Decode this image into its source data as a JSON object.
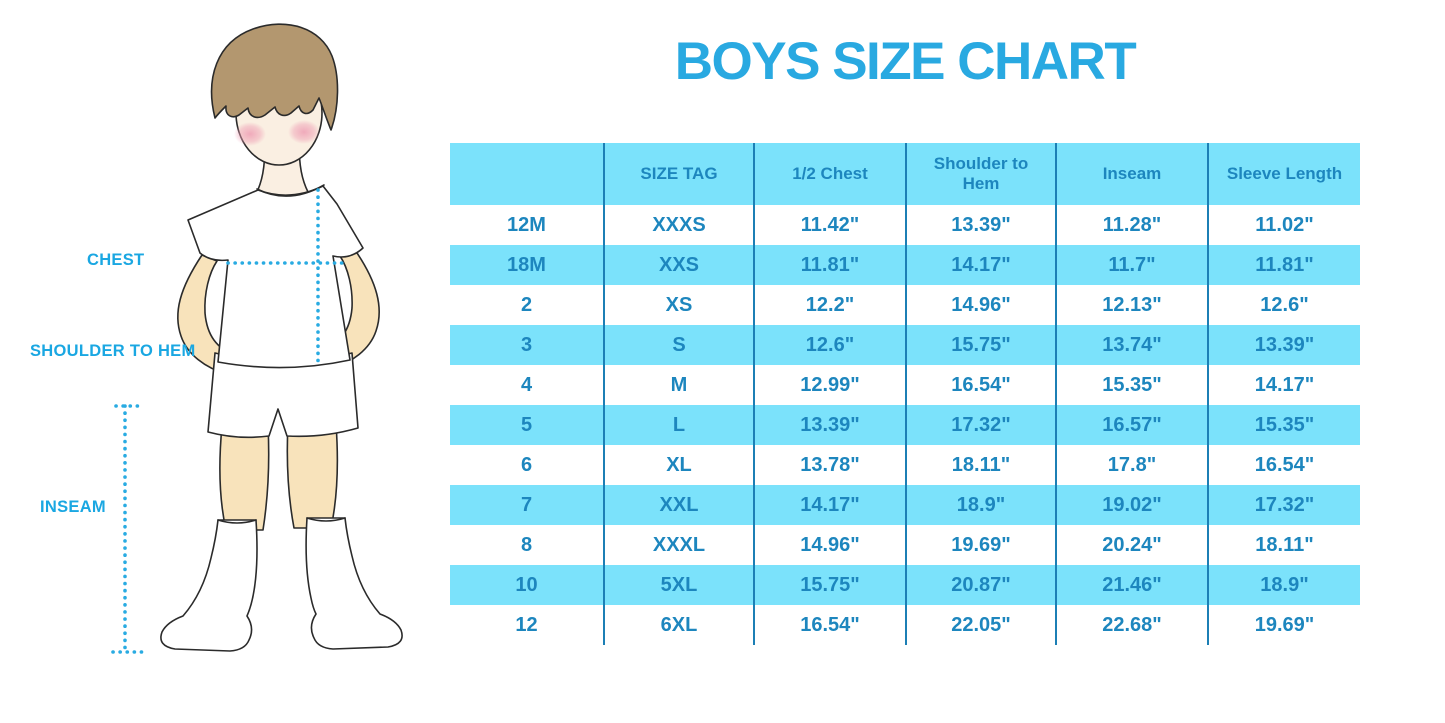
{
  "title": "BOYS SIZE CHART",
  "figure": {
    "labels": [
      {
        "text": "CHEST"
      },
      {
        "text": "SHOULDER TO HEM"
      },
      {
        "text": "INSEAM"
      }
    ]
  },
  "colors": {
    "title_blue": "#29A9E1",
    "label_blue": "#1AA7E2",
    "row_blue": "#7BE2FB",
    "cell_text": "#1D86BE",
    "divider": "#1C7FB5",
    "dotted": "#29ABE2",
    "hair": "#B3976F",
    "skin_face": "#FAEFE2",
    "skin_limb": "#F8E3BB",
    "blush": "#EE9EB4",
    "outline": "#2B2B2B"
  },
  "chart_data": {
    "type": "table",
    "title": "BOYS SIZE CHART",
    "columns": [
      "",
      "SIZE TAG",
      "1/2 Chest",
      "Shoulder to Hem",
      "Inseam",
      "Sleeve Length"
    ],
    "rows": [
      [
        "12M",
        "XXXS",
        "11.42\"",
        "13.39\"",
        "11.28\"",
        "11.02\""
      ],
      [
        "18M",
        "XXS",
        "11.81\"",
        "14.17\"",
        "11.7\"",
        "11.81\""
      ],
      [
        "2",
        "XS",
        "12.2\"",
        "14.96\"",
        "12.13\"",
        "12.6\""
      ],
      [
        "3",
        "S",
        "12.6\"",
        "15.75\"",
        "13.74\"",
        "13.39\""
      ],
      [
        "4",
        "M",
        "12.99\"",
        "16.54\"",
        "15.35\"",
        "14.17\""
      ],
      [
        "5",
        "L",
        "13.39\"",
        "17.32\"",
        "16.57\"",
        "15.35\""
      ],
      [
        "6",
        "XL",
        "13.78\"",
        "18.11\"",
        "17.8\"",
        "16.54\""
      ],
      [
        "7",
        "XXL",
        "14.17\"",
        "18.9\"",
        "19.02\"",
        "17.32\""
      ],
      [
        "8",
        "XXXL",
        "14.96\"",
        "19.69\"",
        "20.24\"",
        "18.11\""
      ],
      [
        "10",
        "5XL",
        "15.75\"",
        "20.87\"",
        "21.46\"",
        "18.9\""
      ],
      [
        "12",
        "6XL",
        "16.54\"",
        "22.05\"",
        "22.68\"",
        "19.69\""
      ]
    ],
    "layout": {
      "header_background": "light-blue",
      "row_striping": "alternating white / light-blue starting white",
      "gridlines": "vertical column dividers only"
    }
  }
}
